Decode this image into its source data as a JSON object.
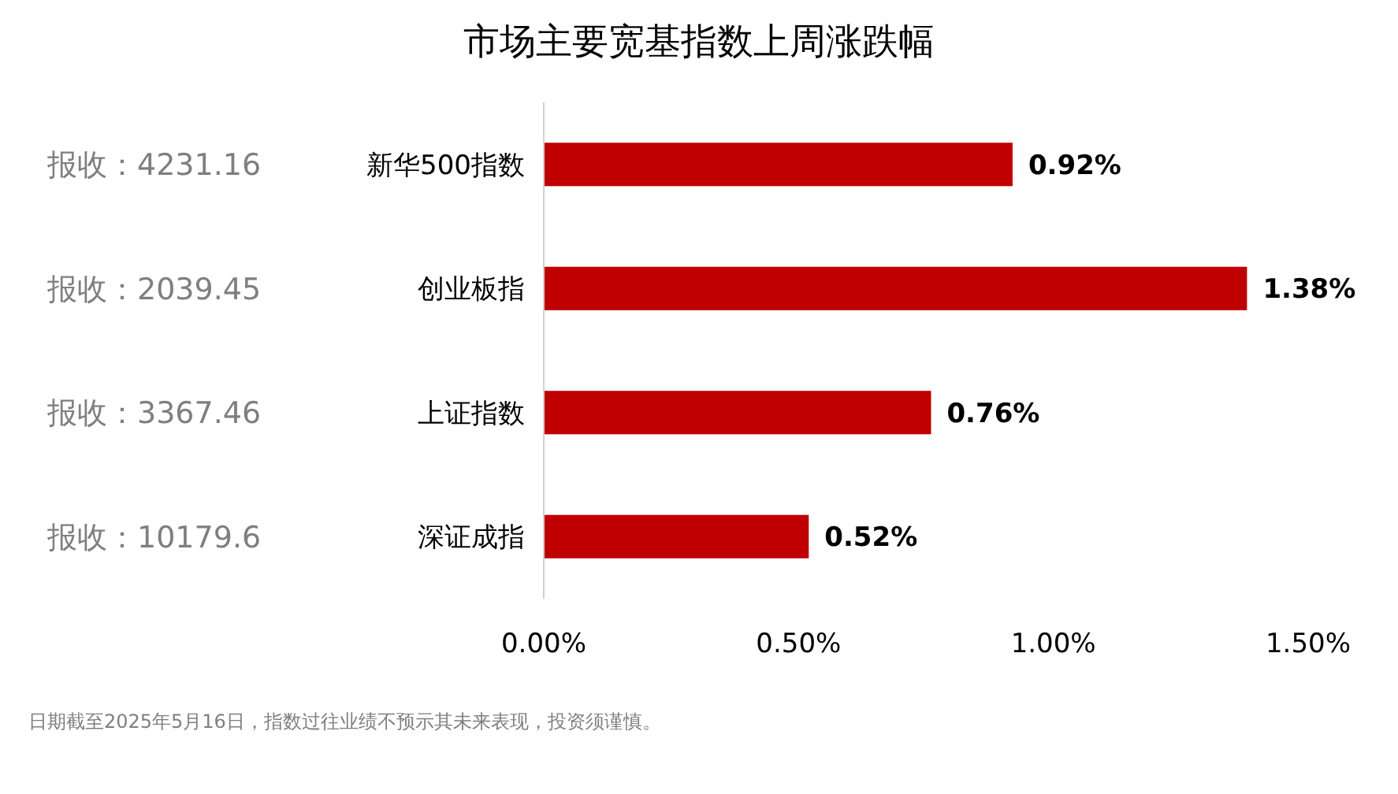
{
  "chart_data": {
    "type": "bar",
    "orientation": "horizontal",
    "title": "市场主要宽基指数上周涨跌幅",
    "categories": [
      "新华500指数",
      "创业板指",
      "上证指数",
      "深证成指"
    ],
    "values": [
      0.92,
      1.38,
      0.76,
      0.52
    ],
    "color": "#c00000",
    "value_labels": [
      "0.92%",
      "1.38%",
      "0.76%",
      "0.52%"
    ],
    "xlim": [
      0,
      1.5
    ],
    "xticks": [
      {
        "value": 0,
        "label": "0.00%"
      },
      {
        "value": 0.5,
        "label": "0.50%"
      },
      {
        "value": 1,
        "label": "1.00%"
      },
      {
        "value": 1.5,
        "label": "1.50%"
      }
    ],
    "grid": false,
    "annotations": [
      "报收：4231.16",
      "报收：2039.45",
      "报收：3367.46",
      "报收：10179.6",
      "日期截至2025年5月16日，指数过往业绩不预示其未来表现，投资须谨慎。"
    ]
  }
}
